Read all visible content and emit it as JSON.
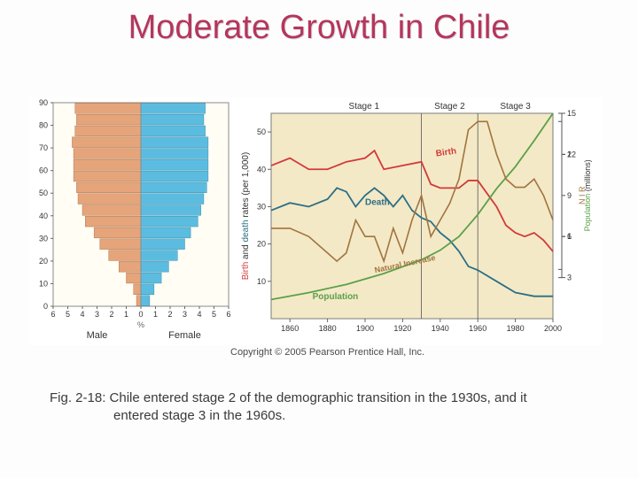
{
  "title": "Moderate Growth in Chile",
  "copyright": "Copyright © 2005 Pearson Prentice Hall, Inc.",
  "caption_line1": "Fig. 2-18: Chile entered stage 2 of the demographic transition in the 1930s, and it",
  "caption_line2": "entered stage 3 in the 1960s.",
  "pyramid": {
    "y_ticks": [
      0,
      10,
      20,
      30,
      40,
      50,
      60,
      70,
      80,
      90
    ],
    "x_ticks": [
      6,
      5,
      4,
      3,
      2,
      1,
      0,
      1,
      2,
      3,
      4,
      5,
      6
    ],
    "x_label": "%",
    "male_label": "Male",
    "female_label": "Female",
    "male_color": "#e5a47a",
    "female_color": "#5cbce0",
    "bg": "#fffdf4",
    "border": "#8a8a8a",
    "tick_font": 9,
    "bars_male": [
      0.3,
      0.5,
      1.0,
      1.5,
      2.2,
      2.8,
      3.2,
      3.8,
      4.0,
      4.3,
      4.4,
      4.6,
      4.6,
      4.6,
      4.7,
      4.5,
      4.4,
      4.5
    ],
    "bars_female": [
      0.6,
      0.9,
      1.4,
      1.9,
      2.5,
      3.0,
      3.4,
      3.9,
      4.1,
      4.3,
      4.5,
      4.6,
      4.6,
      4.6,
      4.6,
      4.4,
      4.3,
      4.4
    ]
  },
  "lines": {
    "bg": "#f4e9c6",
    "border": "#7a7a7a",
    "x_min": 1850,
    "x_max": 2000,
    "x_ticks": [
      1860,
      1880,
      1900,
      1920,
      1940,
      1960,
      1980,
      2000
    ],
    "left_axis_label": "Birth and death rates (per 1,000)",
    "left_ticks": [
      10,
      20,
      30,
      40,
      50
    ],
    "left_min": 0,
    "left_max": 55,
    "right_pop_label": "Population (millions)",
    "right_pop_ticks": [
      3,
      6,
      9,
      12,
      15
    ],
    "right_nir_label": "N I R",
    "right_nir_ticks": [
      1,
      2
    ],
    "stage1_label": "Stage 1",
    "stage2_label": "Stage 2",
    "stage3_label": "Stage 3",
    "stage_div1_x": 1930,
    "stage_div2_x": 1960,
    "birth_label": "Birth",
    "death_label": "Death",
    "pop_label": "Population",
    "nir_label": "Natural Increase",
    "birth_color": "#d23a3a",
    "death_color": "#2b6f86",
    "pop_color": "#5aa14a",
    "nir_color": "#a07440",
    "axis_font": 9,
    "birth_pts": [
      [
        1850,
        41
      ],
      [
        1860,
        43
      ],
      [
        1870,
        40
      ],
      [
        1880,
        40
      ],
      [
        1890,
        42
      ],
      [
        1900,
        43
      ],
      [
        1905,
        45
      ],
      [
        1910,
        40
      ],
      [
        1920,
        41
      ],
      [
        1930,
        42
      ],
      [
        1935,
        36
      ],
      [
        1940,
        35
      ],
      [
        1950,
        35
      ],
      [
        1955,
        37
      ],
      [
        1960,
        37
      ],
      [
        1970,
        30
      ],
      [
        1975,
        25
      ],
      [
        1980,
        23
      ],
      [
        1985,
        22
      ],
      [
        1990,
        23
      ],
      [
        1995,
        21
      ],
      [
        2000,
        18
      ]
    ],
    "death_pts": [
      [
        1850,
        29
      ],
      [
        1860,
        31
      ],
      [
        1870,
        30
      ],
      [
        1880,
        32
      ],
      [
        1885,
        35
      ],
      [
        1890,
        34
      ],
      [
        1895,
        30
      ],
      [
        1900,
        33
      ],
      [
        1905,
        35
      ],
      [
        1910,
        33
      ],
      [
        1915,
        30
      ],
      [
        1920,
        33
      ],
      [
        1925,
        29
      ],
      [
        1930,
        27
      ],
      [
        1935,
        26
      ],
      [
        1940,
        23
      ],
      [
        1945,
        21
      ],
      [
        1950,
        18
      ],
      [
        1955,
        14
      ],
      [
        1960,
        13
      ],
      [
        1970,
        10
      ],
      [
        1980,
        7
      ],
      [
        1990,
        6
      ],
      [
        2000,
        6
      ]
    ],
    "pop_pts": [
      [
        1850,
        1.4
      ],
      [
        1870,
        1.9
      ],
      [
        1890,
        2.5
      ],
      [
        1910,
        3.3
      ],
      [
        1930,
        4.3
      ],
      [
        1940,
        5.0
      ],
      [
        1950,
        6.0
      ],
      [
        1960,
        7.6
      ],
      [
        1970,
        9.5
      ],
      [
        1980,
        11.1
      ],
      [
        1990,
        13.0
      ],
      [
        2000,
        15.0
      ]
    ],
    "nir_pts": [
      [
        1850,
        1.1
      ],
      [
        1860,
        1.1
      ],
      [
        1870,
        1.0
      ],
      [
        1880,
        0.8
      ],
      [
        1885,
        0.7
      ],
      [
        1890,
        0.8
      ],
      [
        1895,
        1.2
      ],
      [
        1900,
        1.0
      ],
      [
        1905,
        1.0
      ],
      [
        1910,
        0.7
      ],
      [
        1915,
        1.1
      ],
      [
        1920,
        0.8
      ],
      [
        1925,
        1.2
      ],
      [
        1930,
        1.5
      ],
      [
        1935,
        1.0
      ],
      [
        1940,
        1.2
      ],
      [
        1945,
        1.4
      ],
      [
        1950,
        1.7
      ],
      [
        1955,
        2.3
      ],
      [
        1960,
        2.4
      ],
      [
        1965,
        2.4
      ],
      [
        1970,
        2.0
      ],
      [
        1975,
        1.7
      ],
      [
        1980,
        1.6
      ],
      [
        1985,
        1.6
      ],
      [
        1990,
        1.7
      ],
      [
        1995,
        1.5
      ],
      [
        2000,
        1.2
      ]
    ]
  }
}
